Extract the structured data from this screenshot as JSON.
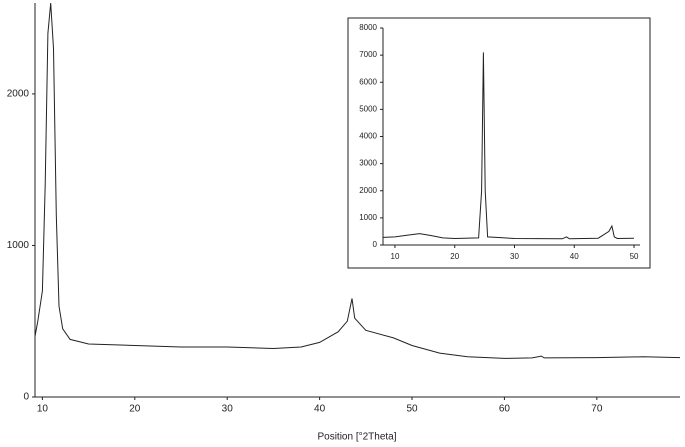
{
  "chart_data": [
    {
      "type": "line",
      "xlabel": "Position [°2Theta]",
      "color": "#222222",
      "x": [
        9.2,
        9.5,
        10,
        10.3,
        10.6,
        10.9,
        11.2,
        11.5,
        11.8,
        12.2,
        13,
        15,
        20,
        25,
        30,
        35,
        38,
        40,
        42,
        43,
        43.5,
        43.8,
        45,
        48,
        50,
        53,
        56,
        60,
        63,
        64,
        64.3,
        70,
        75,
        79
      ],
      "values": [
        400,
        500,
        700,
        1400,
        2400,
        2600,
        2300,
        1200,
        600,
        450,
        380,
        350,
        340,
        330,
        330,
        320,
        330,
        360,
        430,
        500,
        650,
        520,
        440,
        390,
        340,
        290,
        265,
        255,
        258,
        270,
        258,
        260,
        265,
        260
      ],
      "xlim": [
        9.2,
        79
      ],
      "ylim": [
        0,
        2600
      ],
      "xticks": [
        10,
        20,
        30,
        40,
        50,
        60,
        70
      ],
      "yticks": [
        0,
        1000,
        2000
      ]
    },
    {
      "type": "line",
      "color": "#222222",
      "x": [
        8,
        10,
        12,
        14.1,
        16,
        18,
        20,
        24,
        24.5,
        24.8,
        25.1,
        25.5,
        30,
        38,
        38.7,
        39.2,
        44,
        45.8,
        46.3,
        46.7,
        47.2,
        50
      ],
      "values": [
        280,
        300,
        360,
        420,
        350,
        260,
        240,
        260,
        2000,
        7100,
        2000,
        300,
        240,
        230,
        300,
        230,
        250,
        500,
        700,
        300,
        240,
        250
      ],
      "xlim": [
        8,
        51
      ],
      "ylim": [
        0,
        8000
      ],
      "xticks": [
        10,
        20,
        30,
        40,
        50
      ],
      "yticks": [
        0,
        1000,
        2000,
        3000,
        4000,
        5000,
        6000,
        7000,
        8000
      ]
    }
  ]
}
